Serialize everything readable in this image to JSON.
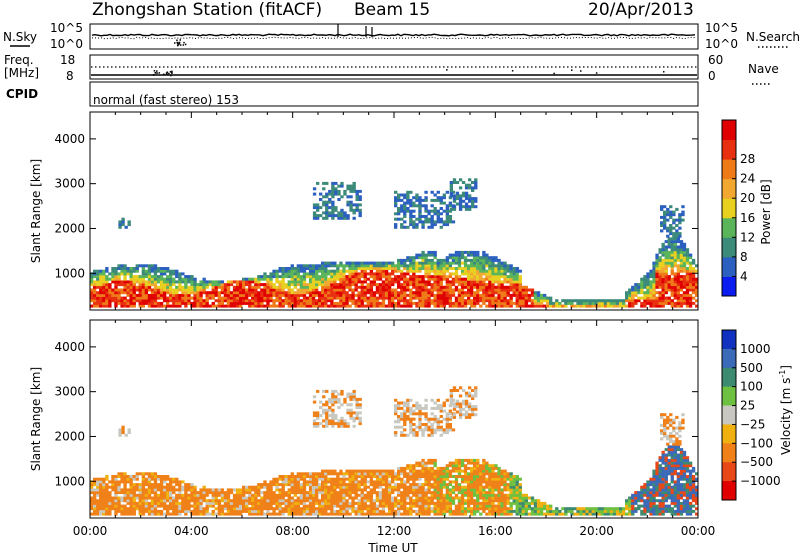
{
  "header": {
    "title": "Zhongshan Station (fitACF)",
    "beam": "Beam 15",
    "date": "20/Apr/2013"
  },
  "status_panels": {
    "nsky_label": "N.Sky",
    "nsearch_label": "N.Search",
    "freq_label_1": "Freq.",
    "freq_label_2": "[MHz]",
    "nave_label": "Nave",
    "cpid_label": "CPID",
    "cpid_text": "normal (fast stereo) 153",
    "noise_ticks_left": [
      "10^5",
      "10^0"
    ],
    "noise_ticks_right": [
      "10^5",
      "10^0"
    ],
    "freq_ticks_left": [
      "18",
      "8"
    ],
    "nave_ticks_right": [
      "60",
      "0"
    ]
  },
  "chart_data": [
    {
      "type": "heatmap",
      "panel": "power",
      "ylabel": "Slant Range [km]",
      "ylim": [
        180,
        4600
      ],
      "y_ticks": [
        1000,
        2000,
        3000,
        4000
      ],
      "x_ticks": [
        "00:00",
        "04:00",
        "08:00",
        "12:00",
        "16:00",
        "20:00",
        "00:00"
      ],
      "colorbar": {
        "label": "Power [dB]",
        "ticks": [
          "4",
          "8",
          "12",
          "16",
          "20",
          "24",
          "28"
        ],
        "colors": [
          "#0a1cf0",
          "#2b5fc0",
          "#3c8a7a",
          "#5ab55a",
          "#e8d020",
          "#f2a830",
          "#ef7a18",
          "#e83010",
          "#e00000"
        ]
      }
    },
    {
      "type": "heatmap",
      "panel": "velocity",
      "ylabel": "Slant Range [km]",
      "ylim": [
        180,
        4600
      ],
      "y_ticks": [
        1000,
        2000,
        3000,
        4000
      ],
      "x_ticks": [
        "00:00",
        "04:00",
        "08:00",
        "12:00",
        "16:00",
        "20:00",
        "00:00"
      ],
      "xlabel": "Time UT",
      "colorbar": {
        "label": "Velocity [m s",
        "label_sup": "-1",
        "label_end": "]",
        "ticks": [
          "1000",
          "500",
          "100",
          "25",
          "−25",
          "−100",
          "−500",
          "−1000"
        ],
        "colors": [
          "#1030c0",
          "#3a6ab8",
          "#3c8a70",
          "#6ec040",
          "#c8c8c0",
          "#f0b010",
          "#f08018",
          "#e84818",
          "#e00000"
        ]
      }
    }
  ]
}
